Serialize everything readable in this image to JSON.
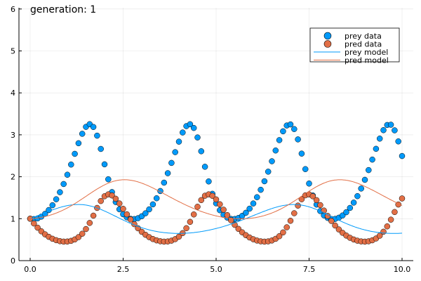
{
  "chart_data": {
    "type": "scatter",
    "title": "generation: 1",
    "xlabel": "",
    "ylabel": "",
    "xlim": [
      -0.3,
      10.3
    ],
    "ylim": [
      0,
      6
    ],
    "x_ticks": [
      0,
      2.5,
      5,
      7.5,
      10
    ],
    "x_tick_labels": [
      "0.0",
      "2.5",
      "5.0",
      "7.5",
      "10.0"
    ],
    "y_ticks": [
      0,
      1,
      2,
      3,
      4,
      5,
      6
    ],
    "y_tick_labels": [
      "0",
      "1",
      "2",
      "3",
      "4",
      "5",
      "6"
    ],
    "grid": true,
    "legend_position": "top-right",
    "x": {
      "start": 0,
      "stop": 10,
      "step": 0.1
    },
    "series": [
      {
        "name": "prey data",
        "kind": "scatter",
        "color": "#009AFA",
        "generator": "lotka-volterra",
        "component": 0,
        "params": {
          "alpha": 2.3,
          "beta": 2.55,
          "gamma": 2.53,
          "delta": 1.33
        },
        "u0": [
          1,
          1
        ]
      },
      {
        "name": "pred data",
        "kind": "scatter",
        "color": "#E26F46",
        "generator": "lotka-volterra",
        "component": 1,
        "params": {
          "alpha": 2.3,
          "beta": 2.55,
          "gamma": 2.53,
          "delta": 1.33
        },
        "u0": [
          1,
          1
        ]
      },
      {
        "name": "prey model",
        "kind": "line",
        "color": "#009AFA",
        "generator": "lotka-volterra",
        "component": 0,
        "params": {
          "alpha": 1.2,
          "beta": 0.85,
          "gamma": 1.0,
          "delta": 1.05
        },
        "u0": [
          1,
          1
        ]
      },
      {
        "name": "pred model",
        "kind": "line",
        "color": "#E26F46",
        "generator": "lotka-volterra",
        "component": 1,
        "params": {
          "alpha": 1.2,
          "beta": 0.85,
          "gamma": 1.0,
          "delta": 1.05
        },
        "u0": [
          1,
          1
        ]
      }
    ]
  }
}
